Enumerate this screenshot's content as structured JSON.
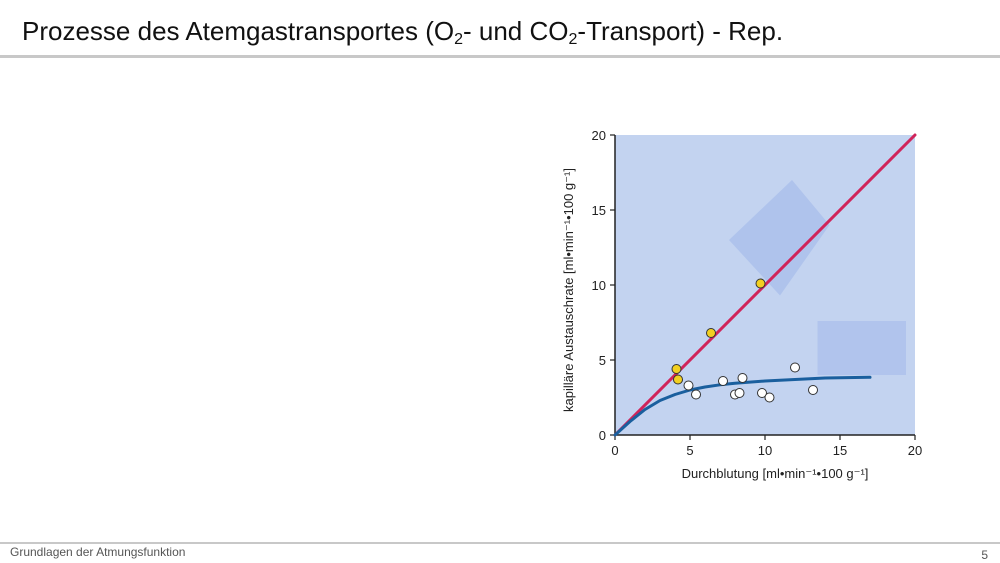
{
  "slide": {
    "title_prefix": "Prozesse des Atemgastransportes  (O",
    "title_sub1": "2",
    "title_mid": "- und CO",
    "title_sub2": "2",
    "title_suffix": "-Transport)  -  Rep.",
    "footer": "Grundlagen der Atmungsfunktion",
    "page_number": "5"
  },
  "chart_data": {
    "type": "scatter",
    "xlabel": "Durchblutung [ml•min⁻¹•100 g⁻¹]",
    "ylabel": "kapilläre Austauschrate [ml•min⁻¹•100 g⁻¹]",
    "xlim": [
      0,
      20
    ],
    "ylim": [
      0,
      20
    ],
    "xticks": [
      0,
      5,
      10,
      15,
      20
    ],
    "yticks": [
      0,
      5,
      10,
      15,
      20
    ],
    "background_color": "#c3d3f0",
    "series": [
      {
        "kind": "line",
        "color": "#d0245a",
        "x": [
          0,
          20
        ],
        "y": [
          0,
          20
        ]
      },
      {
        "kind": "line",
        "color": "#1a5f9e",
        "x": [
          0,
          1,
          2,
          3,
          4,
          5,
          6,
          7,
          8,
          10,
          12,
          14,
          17
        ],
        "y": [
          0,
          0.9,
          1.7,
          2.3,
          2.7,
          3.0,
          3.2,
          3.35,
          3.45,
          3.6,
          3.7,
          3.8,
          3.85
        ]
      },
      {
        "kind": "points",
        "color": "#f2d021",
        "x": [
          4.1,
          4.2,
          6.4,
          9.7
        ],
        "y": [
          4.4,
          3.7,
          6.8,
          10.1
        ]
      },
      {
        "kind": "points",
        "color": "#ffffff",
        "x": [
          4.9,
          5.4,
          7.2,
          8.0,
          8.3,
          8.5,
          9.8,
          10.3,
          12.0,
          13.2
        ],
        "y": [
          3.3,
          2.7,
          3.6,
          2.7,
          2.8,
          3.8,
          2.8,
          2.5,
          4.5,
          3.0
        ]
      }
    ]
  }
}
